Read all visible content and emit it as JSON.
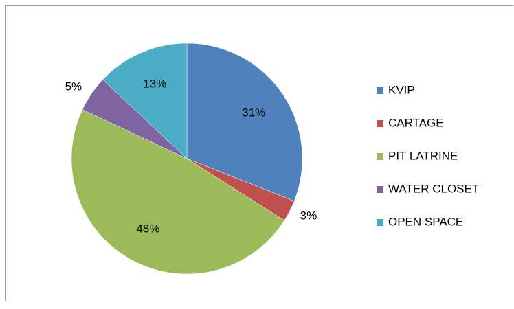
{
  "chart_data": {
    "type": "pie",
    "categories": [
      "KVIP",
      "CARTAGE",
      "PIT LATRINE",
      "WATER CLOSET",
      "OPEN SPACE"
    ],
    "values": [
      31,
      3,
      48,
      5,
      13
    ],
    "value_labels": [
      "31%",
      "3%",
      "48%",
      "5%",
      "13%"
    ],
    "colors": [
      "#4f81bd",
      "#c0504d",
      "#9bbb59",
      "#8064a2",
      "#4bacc6"
    ],
    "legend": "right"
  }
}
